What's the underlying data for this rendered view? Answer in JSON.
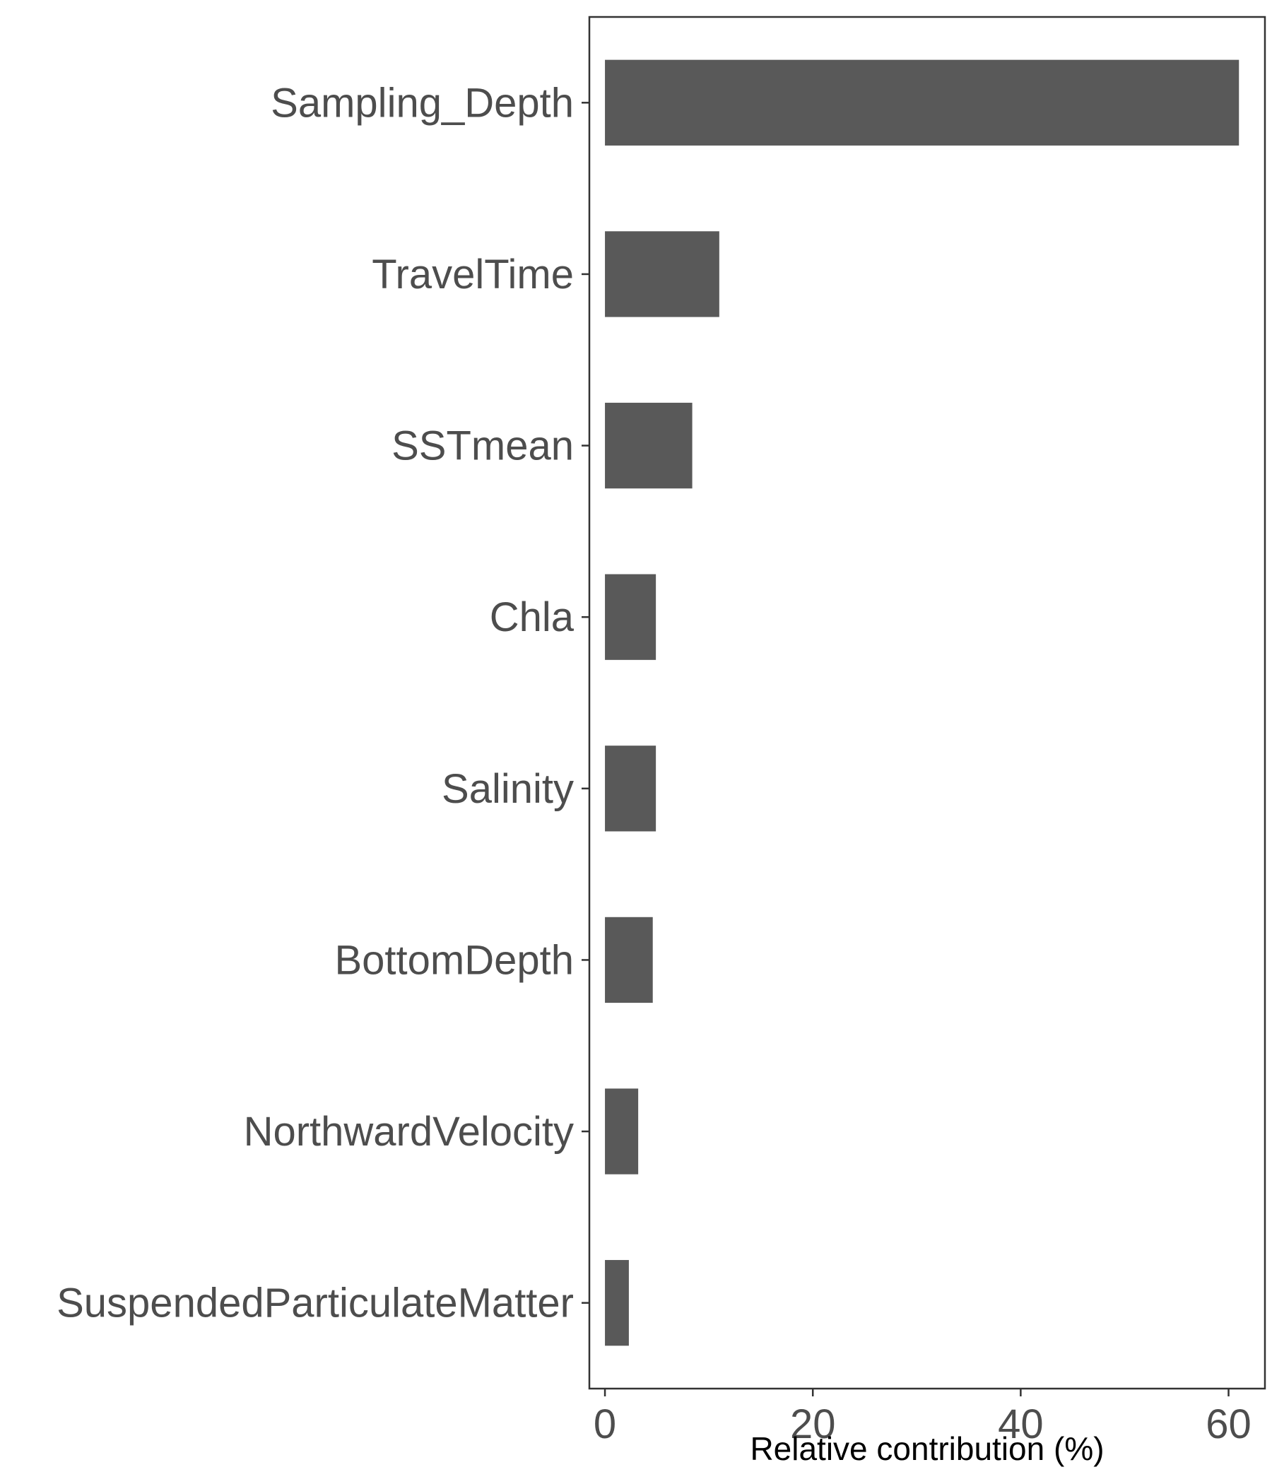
{
  "chart_data": {
    "type": "bar",
    "orientation": "horizontal",
    "title": "",
    "xlabel": "Relative contribution (%)",
    "ylabel": "",
    "xlim": [
      -1.5,
      63.5
    ],
    "xticks": [
      0,
      20,
      40,
      60
    ],
    "xtick_labels": [
      "0",
      "20",
      "40",
      "60"
    ],
    "categories": [
      "Sampling_Depth",
      "TravelTime",
      "SSTmean",
      "Chla",
      "Salinity",
      "BottomDepth",
      "NorthwardVelocity",
      "SuspendedParticulateMatter"
    ],
    "values": [
      61.0,
      11.0,
      8.4,
      4.9,
      4.9,
      4.6,
      3.2,
      2.3
    ],
    "bar_color": "#595959",
    "grid": false,
    "legend": "none"
  }
}
